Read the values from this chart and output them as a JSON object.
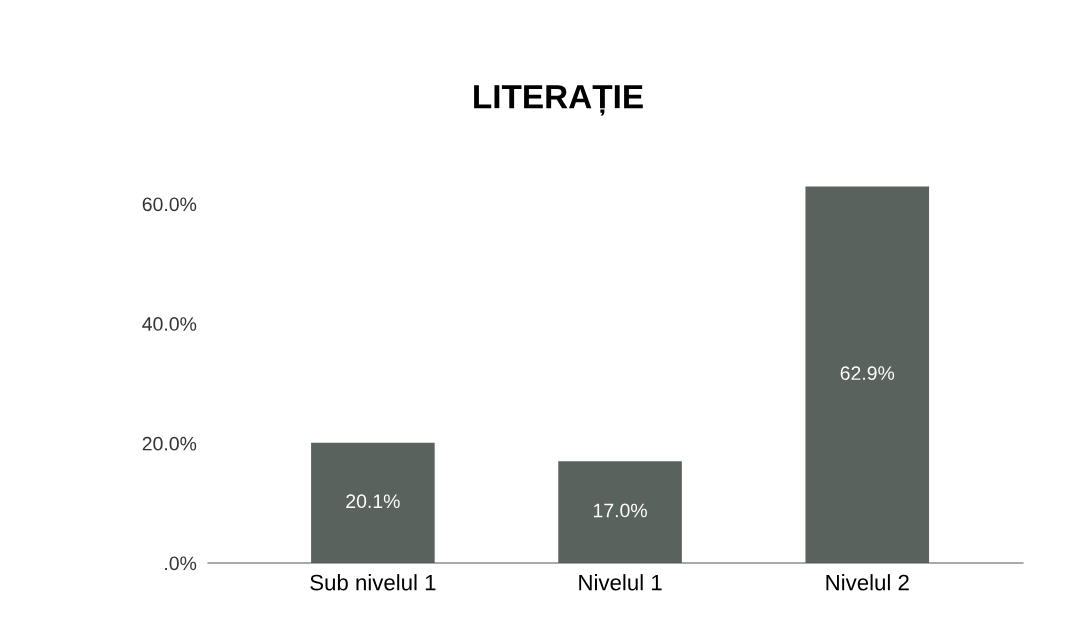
{
  "chart_data": {
    "type": "bar",
    "title": "LITERAȚIE",
    "categories": [
      "Sub nivelul 1",
      "Nivelul 1",
      "Nivelul 2"
    ],
    "values": [
      20.1,
      17.0,
      62.9
    ],
    "value_labels": [
      "20.1%",
      "17.0%",
      "62.9%"
    ],
    "color": "#5a625d",
    "ylim": [
      0,
      63
    ],
    "yticks": [
      {
        "value": 0,
        "label": ".0%"
      },
      {
        "value": 20,
        "label": "20.0%"
      },
      {
        "value": 40,
        "label": "40.0%"
      },
      {
        "value": 60,
        "label": "60.0%"
      }
    ],
    "grid": false,
    "legend": false
  }
}
